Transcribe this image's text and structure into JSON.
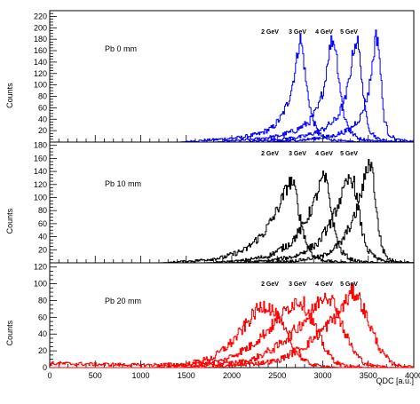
{
  "chart_data": {
    "type": "line",
    "xlabel": "QDC [a.u.]",
    "x_ticks": [
      "0",
      "500",
      "1000",
      "1500",
      "2000",
      "2500",
      "3000",
      "3500",
      "4000"
    ],
    "xlim": [
      0,
      4000
    ],
    "panels": [
      {
        "label": "Pb 0 mm",
        "ylabel": "Counts",
        "ylim": [
          0,
          230
        ],
        "y_ticks": [
          "20",
          "40",
          "60",
          "80",
          "100",
          "120",
          "140",
          "160",
          "180",
          "200",
          "220"
        ],
        "color": "#0000ff",
        "series": [
          {
            "label": "2 GeV",
            "x": [
              1800,
              2100,
              2300,
              2450,
              2550,
              2620,
              2680,
              2720,
              2750,
              2780,
              2820,
              2880,
              2950,
              3050,
              3200
            ],
            "y": [
              4,
              8,
              14,
              25,
              45,
              70,
              110,
              150,
              185,
              160,
              100,
              45,
              15,
              5,
              2
            ]
          },
          {
            "label": "3 GeV",
            "x": [
              2200,
              2500,
              2700,
              2850,
              2950,
              3020,
              3060,
              3100,
              3140,
              3180,
              3230,
              3300,
              3400,
              3550
            ],
            "y": [
              4,
              10,
              20,
              35,
              60,
              100,
              150,
              180,
              170,
              110,
              50,
              18,
              6,
              2
            ]
          },
          {
            "label": "4 GeV",
            "x": [
              2500,
              2800,
              3000,
              3150,
              3250,
              3300,
              3340,
              3380,
              3420,
              3460,
              3520,
              3600,
              3700
            ],
            "y": [
              4,
              10,
              22,
              40,
              75,
              120,
              165,
              180,
              130,
              60,
              20,
              6,
              2
            ]
          },
          {
            "label": "5 GeV",
            "x": [
              2800,
              3100,
              3300,
              3420,
              3500,
              3550,
              3580,
              3610,
              3640,
              3670,
              3720,
              3800,
              3900
            ],
            "y": [
              4,
              10,
              22,
              45,
              85,
              140,
              185,
              180,
              110,
              45,
              15,
              5,
              2
            ]
          }
        ]
      },
      {
        "label": "Pb 10 mm",
        "ylabel": "Counts",
        "ylim": [
          0,
          185
        ],
        "y_ticks": [
          "20",
          "40",
          "60",
          "80",
          "100",
          "120",
          "140",
          "160",
          "180"
        ],
        "color": "#000000",
        "series": [
          {
            "label": "2 GeV",
            "x": [
              1600,
              1900,
              2150,
              2350,
              2480,
              2560,
              2620,
              2660,
              2700,
              2750,
              2820,
              2900,
              3000,
              3100
            ],
            "y": [
              3,
              8,
              20,
              45,
              75,
              100,
              120,
              125,
              110,
              70,
              30,
              10,
              4,
              2
            ]
          },
          {
            "label": "3 GeV",
            "x": [
              2100,
              2400,
              2650,
              2800,
              2900,
              2960,
              3000,
              3040,
              3080,
              3130,
              3200,
              3300,
              3400
            ],
            "y": [
              3,
              10,
              30,
              60,
              90,
              115,
              130,
              125,
              95,
              50,
              18,
              6,
              2
            ]
          },
          {
            "label": "4 GeV",
            "x": [
              2400,
              2700,
              2950,
              3100,
              3200,
              3260,
              3300,
              3340,
              3380,
              3430,
              3500,
              3600,
              3700
            ],
            "y": [
              3,
              10,
              30,
              65,
              100,
              120,
              130,
              125,
              95,
              50,
              18,
              6,
              2
            ]
          },
          {
            "label": "5 GeV",
            "x": [
              2700,
              3000,
              3200,
              3350,
              3430,
              3480,
              3510,
              3540,
              3570,
              3610,
              3660,
              3720,
              3800
            ],
            "y": [
              3,
              10,
              30,
              70,
              110,
              140,
              155,
              150,
              110,
              55,
              20,
              6,
              2
            ]
          }
        ]
      },
      {
        "label": "Pb 20 mm",
        "ylabel": "Counts",
        "ylim": [
          0,
          125
        ],
        "y_ticks": [
          "20",
          "40",
          "60",
          "80",
          "100",
          "120"
        ],
        "color": "#ff0000",
        "series": [
          {
            "label": "2 GeV",
            "x": [
              0,
              1000,
              1500,
              1800,
              2000,
              2150,
              2250,
              2350,
              2420,
              2500,
              2600,
              2700,
              2800,
              2900
            ],
            "y": [
              5,
              3,
              4,
              12,
              30,
              50,
              65,
              75,
              72,
              60,
              40,
              20,
              8,
              3
            ]
          },
          {
            "label": "3 GeV",
            "x": [
              1500,
              1900,
              2200,
              2400,
              2550,
              2650,
              2720,
              2780,
              2850,
              2950,
              3050,
              3150,
              3250
            ],
            "y": [
              3,
              8,
              25,
              45,
              62,
              75,
              80,
              78,
              65,
              40,
              18,
              6,
              2
            ]
          },
          {
            "label": "4 GeV",
            "x": [
              1800,
              2200,
              2500,
              2700,
              2850,
              2950,
              3020,
              3080,
              3150,
              3250,
              3350,
              3450,
              3550
            ],
            "y": [
              3,
              8,
              25,
              45,
              62,
              78,
              88,
              85,
              70,
              40,
              18,
              6,
              2
            ]
          },
          {
            "label": "5 GeV",
            "x": [
              2100,
              2500,
              2800,
              3000,
              3150,
              3250,
              3320,
              3380,
              3450,
              3550,
              3650,
              3750,
              3850
            ],
            "y": [
              3,
              8,
              25,
              45,
              62,
              78,
              90,
              88,
              70,
              42,
              18,
              6,
              2
            ]
          }
        ]
      }
    ]
  }
}
